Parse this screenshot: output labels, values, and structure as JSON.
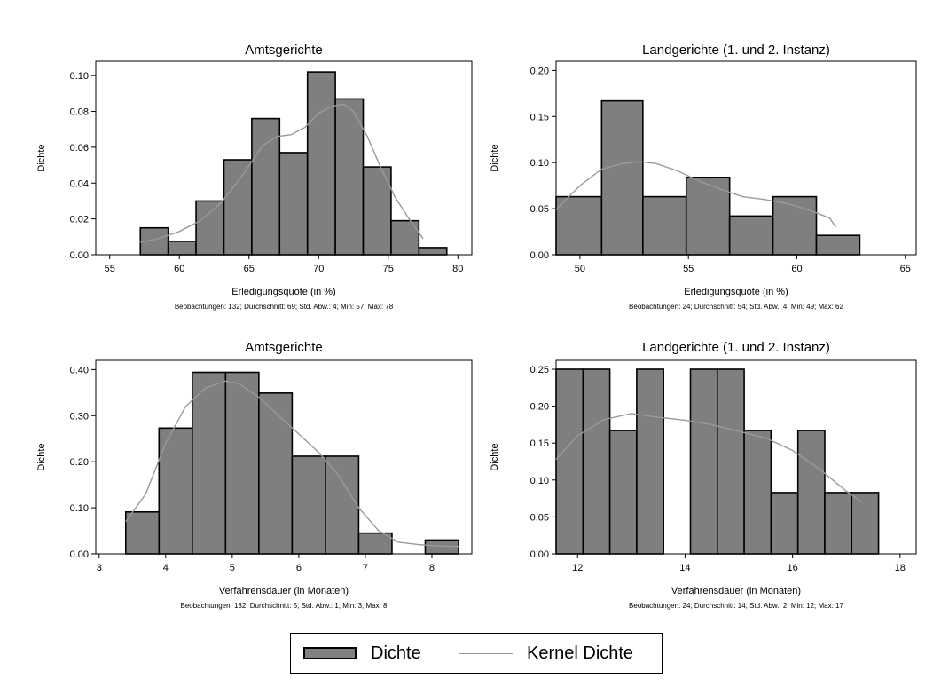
{
  "colors": {
    "bar_fill": "#7f7f7f",
    "bar_stroke": "#000000",
    "kde_line": "#9a9a9a",
    "axis": "#000000"
  },
  "legend": {
    "hist_label": "Dichte",
    "kde_label": "Kernel Dichte"
  },
  "chart_data": [
    {
      "type": "bar",
      "title": "Amtsgerichte",
      "xlabel": "Erledigungsquote (in %)",
      "ylabel": "Dichte",
      "note": "Beobachtungen: 132; Durchschnitt: 69; Std. Abw.: 4; Min: 57; Max: 78",
      "xlim": [
        54,
        81
      ],
      "ylim": [
        0,
        0.108
      ],
      "xticks": [
        55,
        60,
        65,
        70,
        75,
        80
      ],
      "yticks": [
        0,
        0.02,
        0.04,
        0.06,
        0.08,
        0.1
      ],
      "ytick_labels": [
        "0.00",
        "0.02",
        "0.04",
        "0.06",
        "0.08",
        "0.10"
      ],
      "bins": [
        {
          "x0": 57.2,
          "x1": 59.2,
          "y": 0.015
        },
        {
          "x0": 59.2,
          "x1": 61.2,
          "y": 0.0075
        },
        {
          "x0": 61.2,
          "x1": 63.2,
          "y": 0.03
        },
        {
          "x0": 63.2,
          "x1": 65.2,
          "y": 0.053
        },
        {
          "x0": 65.2,
          "x1": 67.2,
          "y": 0.076
        },
        {
          "x0": 67.2,
          "x1": 69.2,
          "y": 0.057
        },
        {
          "x0": 69.2,
          "x1": 71.2,
          "y": 0.102
        },
        {
          "x0": 71.2,
          "x1": 73.2,
          "y": 0.087
        },
        {
          "x0": 73.2,
          "x1": 75.2,
          "y": 0.049
        },
        {
          "x0": 75.2,
          "x1": 77.2,
          "y": 0.019
        },
        {
          "x0": 77.2,
          "x1": 79.2,
          "y": 0.004
        }
      ],
      "kde": [
        [
          57.2,
          0.007
        ],
        [
          58.5,
          0.009
        ],
        [
          60,
          0.013
        ],
        [
          61.5,
          0.019
        ],
        [
          63,
          0.029
        ],
        [
          64.5,
          0.044
        ],
        [
          66,
          0.061
        ],
        [
          67,
          0.066
        ],
        [
          68,
          0.067
        ],
        [
          69,
          0.071
        ],
        [
          70,
          0.079
        ],
        [
          71,
          0.083
        ],
        [
          71.8,
          0.084
        ],
        [
          72.5,
          0.08
        ],
        [
          73.5,
          0.066
        ],
        [
          74.5,
          0.048
        ],
        [
          75.5,
          0.032
        ],
        [
          76.5,
          0.02
        ],
        [
          77.5,
          0.009
        ]
      ]
    },
    {
      "type": "bar",
      "title": "Landgerichte (1. und 2. Instanz)",
      "xlabel": "Erledigungsquote (in %)",
      "ylabel": "Dichte",
      "note": "Beobachtungen: 24; Durchschnitt: 54; Std. Abw.: 4; Min: 49; Max: 62",
      "xlim": [
        48.9,
        65.5
      ],
      "ylim": [
        0,
        0.21
      ],
      "xticks": [
        50,
        55,
        60,
        65
      ],
      "yticks": [
        0,
        0.05,
        0.1,
        0.15,
        0.2
      ],
      "ytick_labels": [
        "0.00",
        "0.05",
        "0.10",
        "0.15",
        "0.20"
      ],
      "bins": [
        {
          "x0": 48.9,
          "x1": 51.0,
          "y": 0.063
        },
        {
          "x0": 51.0,
          "x1": 52.9,
          "y": 0.167
        },
        {
          "x0": 52.9,
          "x1": 54.9,
          "y": 0.063
        },
        {
          "x0": 54.9,
          "x1": 56.9,
          "y": 0.084
        },
        {
          "x0": 56.9,
          "x1": 58.9,
          "y": 0.042
        },
        {
          "x0": 58.9,
          "x1": 60.9,
          "y": 0.063
        },
        {
          "x0": 60.9,
          "x1": 62.9,
          "y": 0.021
        }
      ],
      "kde": [
        [
          48.9,
          0.049
        ],
        [
          50,
          0.075
        ],
        [
          51,
          0.093
        ],
        [
          52,
          0.099
        ],
        [
          52.8,
          0.101
        ],
        [
          53.5,
          0.099
        ],
        [
          54.5,
          0.091
        ],
        [
          55.5,
          0.08
        ],
        [
          56.5,
          0.071
        ],
        [
          57.5,
          0.063
        ],
        [
          58.5,
          0.06
        ],
        [
          59.5,
          0.056
        ],
        [
          60.5,
          0.049
        ],
        [
          61.5,
          0.04
        ],
        [
          61.8,
          0.03
        ]
      ]
    },
    {
      "type": "bar",
      "title": "Amtsgerichte",
      "xlabel": "Verfahrensdauer (in Monaten)",
      "ylabel": "Dichte",
      "note": "Beobachtungen: 132; Durchschnitt: 5; Std. Abw.: 1; Min: 3; Max: 8",
      "xlim": [
        2.95,
        8.6
      ],
      "ylim": [
        0,
        0.42
      ],
      "xticks": [
        3,
        4,
        5,
        6,
        7,
        8
      ],
      "yticks": [
        0,
        0.1,
        0.2,
        0.3,
        0.4
      ],
      "ytick_labels": [
        "0.00",
        "0.10",
        "0.20",
        "0.30",
        "0.40"
      ],
      "bins": [
        {
          "x0": 3.4,
          "x1": 3.9,
          "y": 0.091
        },
        {
          "x0": 3.9,
          "x1": 4.4,
          "y": 0.273
        },
        {
          "x0": 4.4,
          "x1": 4.9,
          "y": 0.394
        },
        {
          "x0": 4.9,
          "x1": 5.4,
          "y": 0.394
        },
        {
          "x0": 5.4,
          "x1": 5.9,
          "y": 0.349
        },
        {
          "x0": 5.9,
          "x1": 6.4,
          "y": 0.212
        },
        {
          "x0": 6.4,
          "x1": 6.9,
          "y": 0.212
        },
        {
          "x0": 6.9,
          "x1": 7.4,
          "y": 0.045
        },
        {
          "x0": 7.9,
          "x1": 8.4,
          "y": 0.03
        }
      ],
      "kde": [
        [
          3.4,
          0.07
        ],
        [
          3.7,
          0.13
        ],
        [
          4.0,
          0.24
        ],
        [
          4.3,
          0.32
        ],
        [
          4.6,
          0.36
        ],
        [
          4.9,
          0.375
        ],
        [
          5.1,
          0.37
        ],
        [
          5.4,
          0.34
        ],
        [
          5.7,
          0.3
        ],
        [
          6.0,
          0.26
        ],
        [
          6.3,
          0.22
        ],
        [
          6.6,
          0.17
        ],
        [
          6.9,
          0.1
        ],
        [
          7.2,
          0.05
        ],
        [
          7.5,
          0.025
        ],
        [
          7.8,
          0.02
        ],
        [
          8.1,
          0.017
        ],
        [
          8.4,
          0.016
        ]
      ]
    },
    {
      "type": "bar",
      "title": "Landgerichte (1. und 2. Instanz)",
      "xlabel": "Verfahrensdauer (in Monaten)",
      "ylabel": "Dichte",
      "note": "Beobachtungen: 24; Durchschnitt: 14; Std. Abw.: 2; Min: 12; Max: 17",
      "xlim": [
        11.6,
        18.3
      ],
      "ylim": [
        0,
        0.262
      ],
      "xticks": [
        12,
        14,
        16,
        18
      ],
      "yticks": [
        0,
        0.05,
        0.1,
        0.15,
        0.2,
        0.25
      ],
      "ytick_labels": [
        "0.00",
        "0.05",
        "0.10",
        "0.15",
        "0.20",
        "0.25"
      ],
      "bins": [
        {
          "x0": 11.6,
          "x1": 12.1,
          "y": 0.25
        },
        {
          "x0": 12.1,
          "x1": 12.6,
          "y": 0.25
        },
        {
          "x0": 12.6,
          "x1": 13.1,
          "y": 0.167
        },
        {
          "x0": 13.1,
          "x1": 13.6,
          "y": 0.25
        },
        {
          "x0": 14.1,
          "x1": 14.6,
          "y": 0.25
        },
        {
          "x0": 14.6,
          "x1": 15.1,
          "y": 0.25
        },
        {
          "x0": 15.1,
          "x1": 15.6,
          "y": 0.167
        },
        {
          "x0": 15.6,
          "x1": 16.1,
          "y": 0.083
        },
        {
          "x0": 16.1,
          "x1": 16.6,
          "y": 0.167
        },
        {
          "x0": 16.6,
          "x1": 17.1,
          "y": 0.083
        },
        {
          "x0": 17.1,
          "x1": 17.6,
          "y": 0.083
        }
      ],
      "kde": [
        [
          11.6,
          0.128
        ],
        [
          12.0,
          0.16
        ],
        [
          12.5,
          0.182
        ],
        [
          13.0,
          0.19
        ],
        [
          13.5,
          0.185
        ],
        [
          14.0,
          0.181
        ],
        [
          14.5,
          0.175
        ],
        [
          15.0,
          0.166
        ],
        [
          15.5,
          0.157
        ],
        [
          16.0,
          0.14
        ],
        [
          16.5,
          0.115
        ],
        [
          17.0,
          0.085
        ],
        [
          17.3,
          0.07
        ]
      ]
    }
  ]
}
